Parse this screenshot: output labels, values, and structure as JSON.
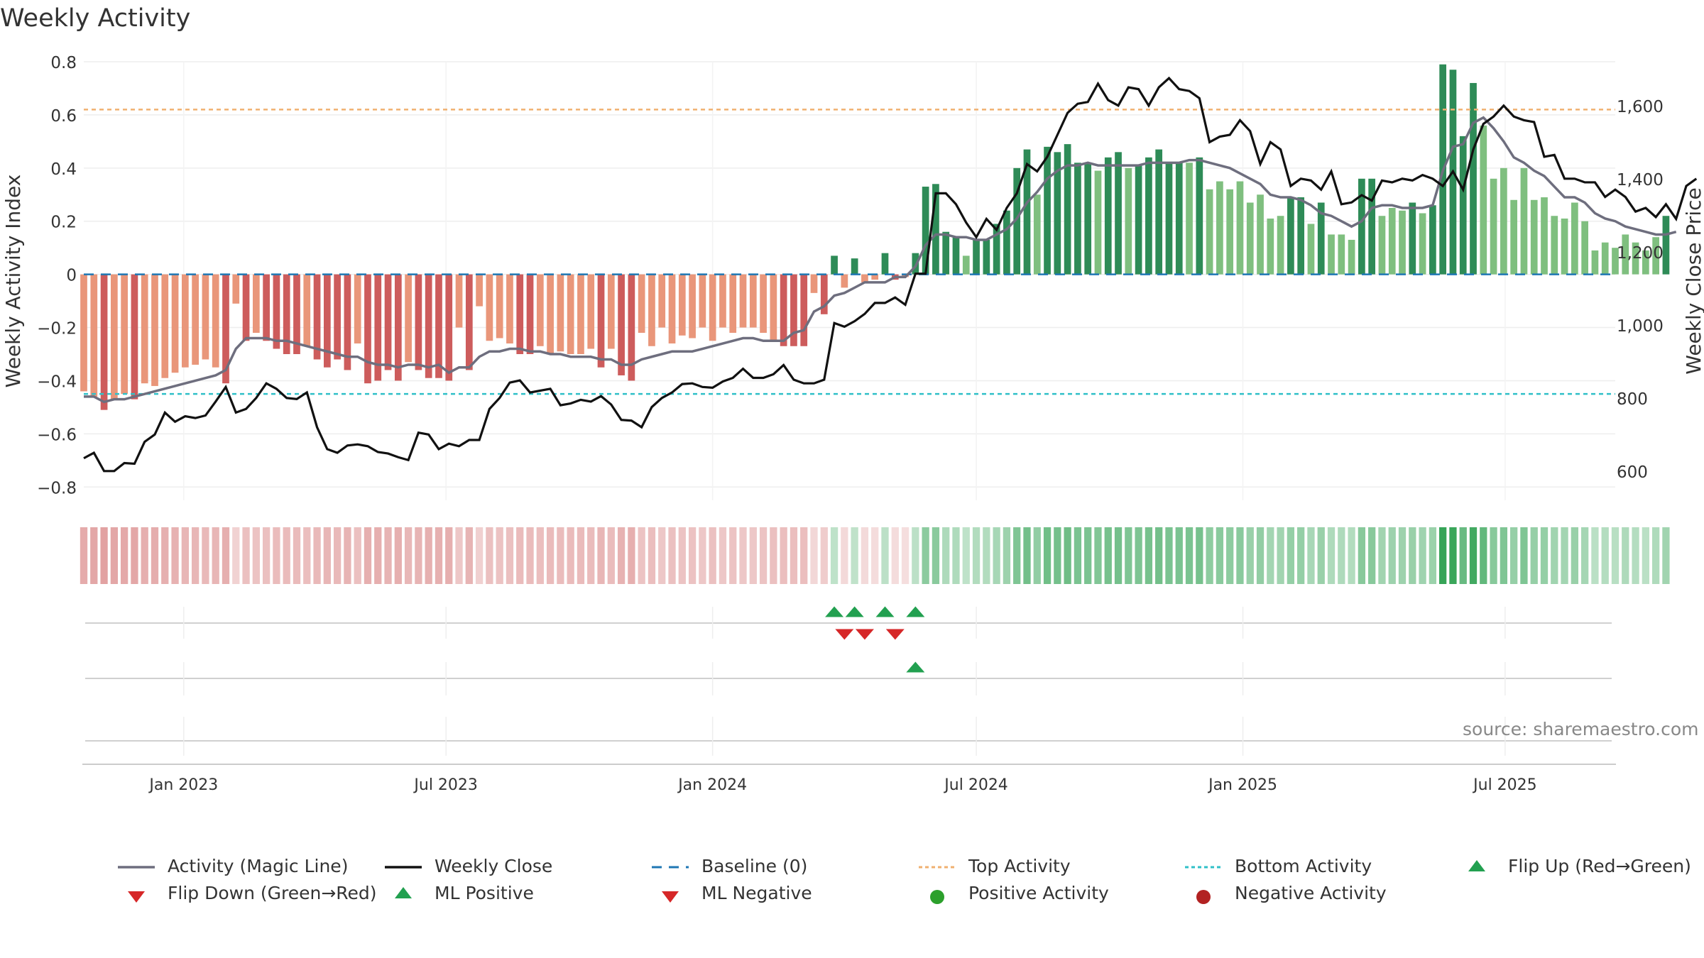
{
  "title": "Weekly Activity",
  "source": "source: sharemaestro.com",
  "colors": {
    "pos_dark": "#2e8b57",
    "pos_light": "#7fbf7f",
    "neg_dark": "#cd5c5c",
    "neg_light": "#e9967a",
    "magic": "#6e6e7e",
    "close": "#111111",
    "top": "#f0b070",
    "bottom": "#30c0c8",
    "baseline": "#1f77b4",
    "flip_up": "#22a050",
    "flip_down": "#d62728"
  },
  "chart_data": {
    "type": "bar",
    "title": "Weekly Activity",
    "ylabel": "Weekly Activity Index",
    "y2label": "Weekly Close Price",
    "ylim": [
      -0.85,
      0.8
    ],
    "y2lim": [
      520,
      1720
    ],
    "yticks": [
      0.8,
      0.6,
      0.4,
      0.2,
      0,
      -0.2,
      -0.4,
      -0.6,
      -0.8
    ],
    "ytick_labels": [
      "0.8",
      "0.6",
      "0.4",
      "0.2",
      "0",
      "−0.2",
      "−0.4",
      "−0.6",
      "−0.8"
    ],
    "y2ticks": [
      1600,
      1400,
      1200,
      1000,
      800,
      600
    ],
    "y2tick_labels": [
      "1,600",
      "1,400",
      "1,200",
      "1,000",
      "800",
      "600"
    ],
    "xlim": [
      "2022-10-24",
      "2025-09-15"
    ],
    "xticks": [
      "2023-01-01",
      "2023-07-01",
      "2024-01-01",
      "2024-07-01",
      "2025-01-01",
      "2025-07-01"
    ],
    "xtick_labels": [
      "Jan 2023",
      "Jul 2023",
      "Jan 2024",
      "Jul 2024",
      "Jan 2025",
      "Jul 2025"
    ],
    "start_week": "2022-10-24",
    "top_activity": 0.62,
    "bottom_activity": -0.45,
    "activity": [
      -0.44,
      -0.46,
      -0.51,
      -0.47,
      -0.45,
      -0.47,
      -0.41,
      -0.42,
      -0.39,
      -0.37,
      -0.35,
      -0.34,
      -0.32,
      -0.35,
      -0.41,
      -0.11,
      -0.25,
      -0.22,
      -0.25,
      -0.28,
      -0.3,
      -0.3,
      -0.27,
      -0.32,
      -0.35,
      -0.32,
      -0.36,
      -0.26,
      -0.41,
      -0.4,
      -0.36,
      -0.4,
      -0.33,
      -0.36,
      -0.39,
      -0.39,
      -0.4,
      -0.2,
      -0.36,
      -0.12,
      -0.25,
      -0.24,
      -0.26,
      -0.3,
      -0.3,
      -0.27,
      -0.3,
      -0.29,
      -0.3,
      -0.3,
      -0.28,
      -0.35,
      -0.28,
      -0.38,
      -0.4,
      -0.22,
      -0.27,
      -0.2,
      -0.26,
      -0.23,
      -0.24,
      -0.2,
      -0.25,
      -0.2,
      -0.22,
      -0.2,
      -0.2,
      -0.22,
      -0.25,
      -0.27,
      -0.27,
      -0.27,
      -0.07,
      -0.15,
      0.07,
      -0.05,
      0.06,
      -0.03,
      -0.02,
      0.08,
      -0.02,
      -0.01,
      0.08,
      0.33,
      0.34,
      0.16,
      0.14,
      0.07,
      0.13,
      0.13,
      0.19,
      0.24,
      0.4,
      0.47,
      0.3,
      0.48,
      0.46,
      0.49,
      0.42,
      0.42,
      0.39,
      0.44,
      0.46,
      0.4,
      0.41,
      0.44,
      0.47,
      0.42,
      0.42,
      0.42,
      0.44,
      0.32,
      0.35,
      0.32,
      0.35,
      0.27,
      0.3,
      0.21,
      0.22,
      0.29,
      0.29,
      0.19,
      0.27,
      0.15,
      0.15,
      0.13,
      0.36,
      0.36,
      0.22,
      0.25,
      0.24,
      0.27,
      0.23,
      0.26,
      0.79,
      0.77,
      0.52,
      0.72,
      0.56,
      0.36,
      0.4,
      0.28,
      0.4,
      0.28,
      0.29,
      0.22,
      0.21,
      0.27,
      0.2,
      0.09,
      0.12,
      0.1,
      0.15,
      0.12,
      0.09,
      0.14,
      0.22
    ],
    "magic_line": [
      -0.46,
      -0.46,
      -0.48,
      -0.47,
      -0.47,
      -0.46,
      -0.45,
      -0.44,
      -0.43,
      -0.42,
      -0.41,
      -0.4,
      -0.39,
      -0.38,
      -0.36,
      -0.28,
      -0.24,
      -0.24,
      -0.24,
      -0.25,
      -0.25,
      -0.26,
      -0.27,
      -0.28,
      -0.29,
      -0.3,
      -0.31,
      -0.31,
      -0.33,
      -0.34,
      -0.34,
      -0.35,
      -0.34,
      -0.34,
      -0.35,
      -0.34,
      -0.37,
      -0.35,
      -0.35,
      -0.31,
      -0.29,
      -0.29,
      -0.28,
      -0.28,
      -0.29,
      -0.29,
      -0.3,
      -0.3,
      -0.31,
      -0.31,
      -0.31,
      -0.32,
      -0.32,
      -0.34,
      -0.34,
      -0.32,
      -0.31,
      -0.3,
      -0.29,
      -0.29,
      -0.29,
      -0.28,
      -0.27,
      -0.26,
      -0.25,
      -0.24,
      -0.24,
      -0.25,
      -0.25,
      -0.25,
      -0.22,
      -0.21,
      -0.14,
      -0.12,
      -0.08,
      -0.07,
      -0.05,
      -0.03,
      -0.03,
      -0.03,
      -0.01,
      -0.01,
      0.03,
      0.11,
      0.15,
      0.15,
      0.14,
      0.14,
      0.13,
      0.13,
      0.15,
      0.17,
      0.21,
      0.27,
      0.31,
      0.36,
      0.39,
      0.41,
      0.41,
      0.42,
      0.41,
      0.41,
      0.41,
      0.41,
      0.41,
      0.42,
      0.42,
      0.42,
      0.42,
      0.43,
      0.43,
      0.42,
      0.41,
      0.4,
      0.38,
      0.36,
      0.34,
      0.3,
      0.29,
      0.29,
      0.28,
      0.26,
      0.23,
      0.22,
      0.2,
      0.18,
      0.2,
      0.25,
      0.26,
      0.26,
      0.25,
      0.25,
      0.25,
      0.26,
      0.39,
      0.48,
      0.49,
      0.57,
      0.59,
      0.55,
      0.5,
      0.44,
      0.42,
      0.39,
      0.37,
      0.33,
      0.29,
      0.29,
      0.27,
      0.23,
      0.21,
      0.2,
      0.18,
      0.17,
      0.16,
      0.15,
      0.15,
      0.16
    ],
    "weekly_close": [
      635,
      650,
      600,
      600,
      622,
      620,
      680,
      700,
      760,
      735,
      750,
      745,
      752,
      790,
      830,
      760,
      770,
      800,
      840,
      825,
      800,
      797,
      815,
      720,
      660,
      650,
      670,
      673,
      668,
      652,
      648,
      638,
      630,
      705,
      700,
      660,
      675,
      668,
      685,
      685,
      770,
      800,
      842,
      848,
      815,
      820,
      825,
      780,
      785,
      795,
      790,
      805,
      782,
      740,
      738,
      720,
      775,
      800,
      815,
      838,
      840,
      830,
      828,
      845,
      855,
      880,
      855,
      855,
      865,
      890,
      850,
      840,
      840,
      850,
      1005,
      995,
      1010,
      1030,
      1060,
      1060,
      1075,
      1055,
      1140,
      1140,
      1360,
      1360,
      1330,
      1280,
      1240,
      1290,
      1260,
      1320,
      1360,
      1440,
      1420,
      1460,
      1520,
      1580,
      1605,
      1610,
      1660,
      1615,
      1600,
      1650,
      1645,
      1600,
      1650,
      1675,
      1645,
      1640,
      1620,
      1500,
      1515,
      1520,
      1560,
      1530,
      1440,
      1500,
      1480,
      1380,
      1400,
      1395,
      1370,
      1420,
      1330,
      1335,
      1355,
      1340,
      1395,
      1390,
      1400,
      1395,
      1410,
      1400,
      1380,
      1420,
      1370,
      1480,
      1550,
      1570,
      1600,
      1570,
      1560,
      1555,
      1460,
      1465,
      1400,
      1400,
      1390,
      1390,
      1350,
      1370,
      1350,
      1310,
      1320,
      1295,
      1330,
      1290,
      1380,
      1400
    ]
  },
  "legend": [
    {
      "label": "Activity (Magic Line)",
      "symbol": "line-gray"
    },
    {
      "label": "Weekly Close",
      "symbol": "line-black"
    },
    {
      "label": "Baseline (0)",
      "symbol": "dash-blue"
    },
    {
      "label": "Top Activity",
      "symbol": "dot-orange"
    },
    {
      "label": "Bottom Activity",
      "symbol": "dot-cyan"
    },
    {
      "label": "Flip Up (Red→Green)",
      "symbol": "triangle-up-green"
    },
    {
      "label": "Flip Down (Green→Red)",
      "symbol": "triangle-down-red"
    },
    {
      "label": "ML Positive",
      "symbol": "triangle-up-green"
    },
    {
      "label": "ML Negative",
      "symbol": "triangle-down-red"
    },
    {
      "label": "Positive Activity",
      "symbol": "circle-green"
    },
    {
      "label": "Negative Activity",
      "symbol": "circle-red"
    }
  ]
}
